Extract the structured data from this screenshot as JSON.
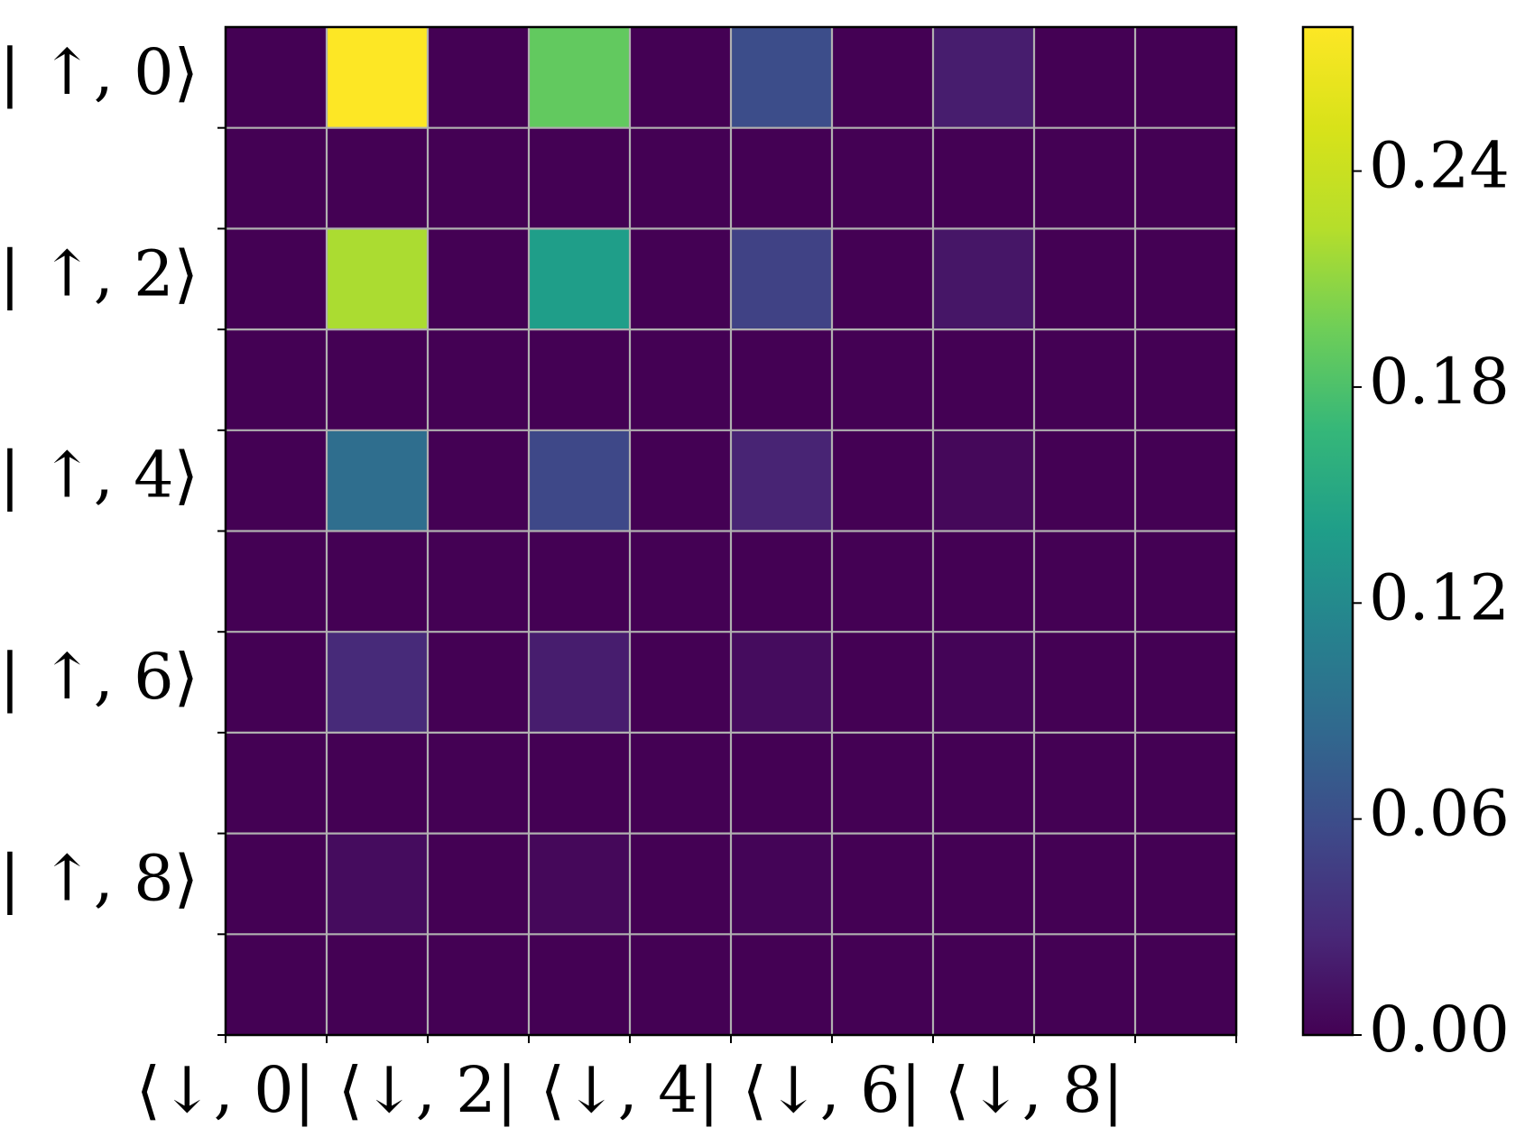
{
  "chart_data": {
    "type": "heatmap",
    "title": "",
    "xlabel": "",
    "ylabel": "",
    "rows": 10,
    "cols": 10,
    "x_tick_labels": [
      "⟨↓, 0|",
      "⟨↓, 2|",
      "⟨↓, 4|",
      "⟨↓, 6|",
      "⟨↓, 8|"
    ],
    "y_tick_labels": [
      "| ↑, 0⟩",
      "| ↑, 2⟩",
      "| ↑, 4⟩",
      "| ↑, 6⟩",
      "| ↑, 8⟩"
    ],
    "colorbar": {
      "colormap": "viridis",
      "vmin": 0.0,
      "vmax": 0.28,
      "ticks": [
        0.0,
        0.06,
        0.12,
        0.18,
        0.24
      ],
      "tick_labels": [
        "0.00",
        "0.06",
        "0.12",
        "0.18",
        "0.24"
      ]
    },
    "grid": true,
    "grid_color": "#b0b0b0",
    "values": [
      [
        0.0,
        0.28,
        0.0,
        0.19,
        0.0,
        0.06,
        0.0,
        0.02,
        0.0,
        0.0
      ],
      [
        0.0,
        0.0,
        0.0,
        0.0,
        0.0,
        0.0,
        0.0,
        0.0,
        0.0,
        0.0
      ],
      [
        0.0,
        0.22,
        0.0,
        0.14,
        0.0,
        0.05,
        0.0,
        0.015,
        0.0,
        0.0
      ],
      [
        0.0,
        0.0,
        0.0,
        0.0,
        0.0,
        0.0,
        0.0,
        0.0,
        0.0,
        0.0
      ],
      [
        0.0,
        0.09,
        0.0,
        0.055,
        0.0,
        0.025,
        0.0,
        0.005,
        0.0,
        0.0
      ],
      [
        0.0,
        0.0,
        0.0,
        0.0,
        0.0,
        0.0,
        0.0,
        0.0,
        0.0,
        0.0
      ],
      [
        0.0,
        0.03,
        0.0,
        0.02,
        0.0,
        0.008,
        0.0,
        0.002,
        0.0,
        0.0
      ],
      [
        0.0,
        0.0,
        0.0,
        0.0,
        0.0,
        0.0,
        0.0,
        0.0,
        0.0,
        0.0
      ],
      [
        0.0,
        0.008,
        0.0,
        0.005,
        0.0,
        0.002,
        0.0,
        0.0,
        0.0,
        0.0
      ],
      [
        0.0,
        0.0,
        0.0,
        0.0,
        0.0,
        0.0,
        0.0,
        0.0,
        0.0,
        0.0
      ]
    ]
  }
}
